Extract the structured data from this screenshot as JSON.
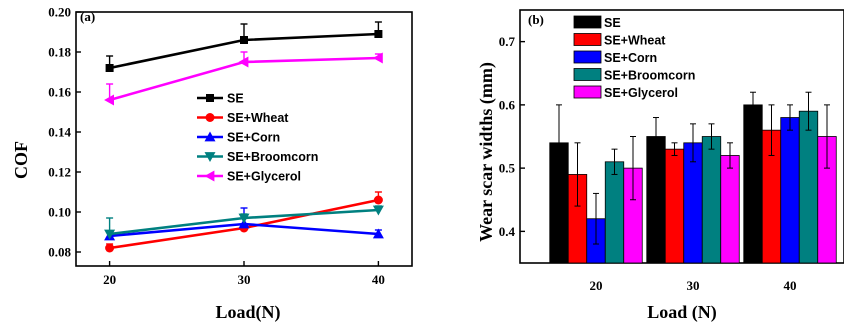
{
  "chart_data": [
    {
      "type": "line",
      "panel_label": "(a)",
      "xlabel": "Load(N)",
      "ylabel": "COF",
      "x": [
        20,
        30,
        40
      ],
      "xlim": [
        17.5,
        42.5
      ],
      "ylim": [
        0.073,
        0.2
      ],
      "xticks": [
        "20",
        "30",
        "40"
      ],
      "yticks": [
        "0.08",
        "0.10",
        "0.12",
        "0.14",
        "0.16",
        "0.18",
        "0.20"
      ],
      "legend_position": "center-right",
      "series": [
        {
          "name": "SE",
          "color": "#000000",
          "marker": "square",
          "values": [
            0.172,
            0.186,
            0.189
          ],
          "errors": [
            0.006,
            0.008,
            0.006
          ]
        },
        {
          "name": "SE+Wheat",
          "color": "#ff0000",
          "marker": "circle",
          "values": [
            0.082,
            0.092,
            0.106
          ],
          "errors": [
            0.002,
            0.002,
            0.004
          ]
        },
        {
          "name": "SE+Corn",
          "color": "#0000ff",
          "marker": "triangle-up",
          "values": [
            0.088,
            0.094,
            0.089
          ],
          "errors": [
            0.002,
            0.008,
            0.002
          ]
        },
        {
          "name": "SE+Broomcorn",
          "color": "#008080",
          "marker": "triangle-down",
          "values": [
            0.089,
            0.097,
            0.101
          ],
          "errors": [
            0.008,
            0.002,
            0.002
          ]
        },
        {
          "name": "SE+Glycerol",
          "color": "#ff00ff",
          "marker": "triangle-left",
          "values": [
            0.156,
            0.175,
            0.177
          ],
          "errors": [
            0.008,
            0.005,
            0.002
          ]
        }
      ]
    },
    {
      "type": "bar",
      "panel_label": "(b)",
      "xlabel": "Load (N)",
      "ylabel": "Wear scar widths (mm)",
      "categories": [
        "20",
        "30",
        "40"
      ],
      "ylim": [
        0.35,
        0.75
      ],
      "yticks": [
        "0.4",
        "0.5",
        "0.6",
        "0.7"
      ],
      "legend_position": "top-left",
      "series": [
        {
          "name": "SE",
          "color": "#000000",
          "values": [
            0.54,
            0.55,
            0.6
          ],
          "errors": [
            0.06,
            0.03,
            0.02
          ]
        },
        {
          "name": "SE+Wheat",
          "color": "#ff0000",
          "values": [
            0.49,
            0.53,
            0.56
          ],
          "errors": [
            0.05,
            0.01,
            0.04
          ]
        },
        {
          "name": "SE+Corn",
          "color": "#0000ff",
          "values": [
            0.42,
            0.54,
            0.58
          ],
          "errors": [
            0.04,
            0.03,
            0.02
          ]
        },
        {
          "name": "SE+Broomcorn",
          "color": "#008080",
          "values": [
            0.51,
            0.55,
            0.59
          ],
          "errors": [
            0.02,
            0.02,
            0.03
          ]
        },
        {
          "name": "SE+Glycerol",
          "color": "#ff00ff",
          "values": [
            0.5,
            0.52,
            0.55
          ],
          "errors": [
            0.05,
            0.02,
            0.05
          ]
        }
      ]
    }
  ]
}
